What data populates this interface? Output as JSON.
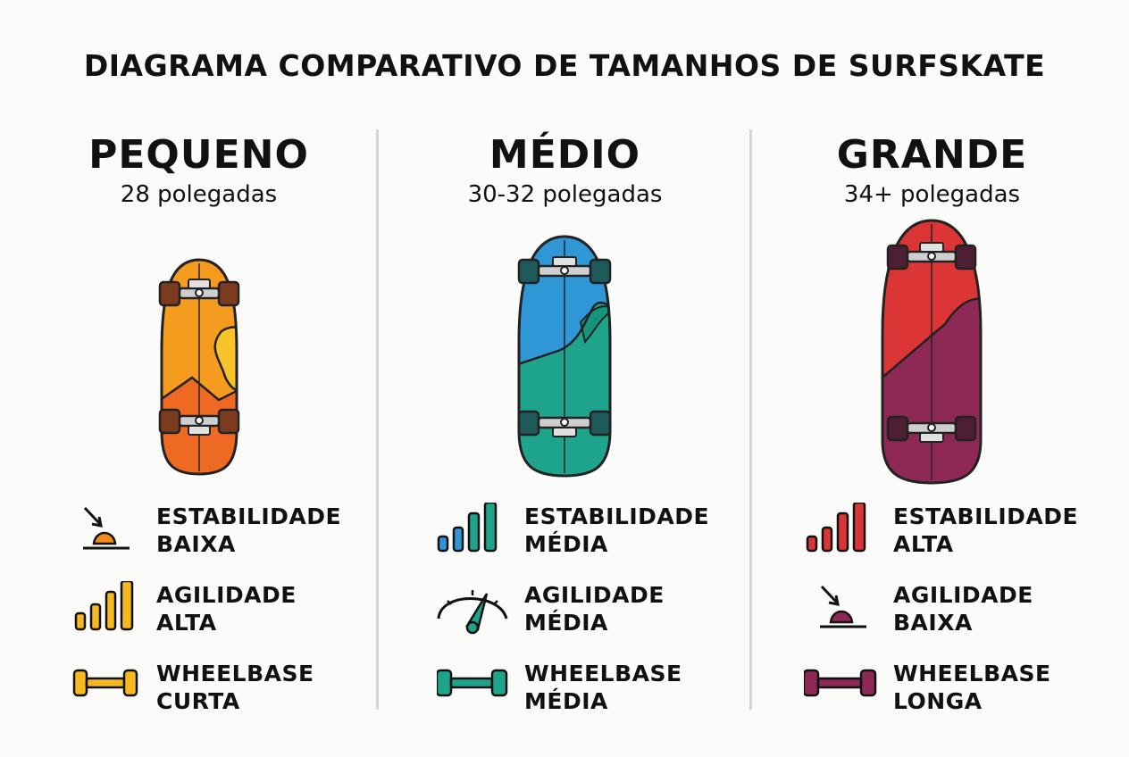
{
  "title": "DIAGRAMA COMPARATIVO DE TAMANHOS DE SURFSKATE",
  "columns": [
    {
      "name": "PEQUENO",
      "size": "28 polegadas",
      "colors": {
        "main": "#f08a1c",
        "accent": "#f5b81f",
        "dark": "#e8622a",
        "hw": "#7a3b1e"
      },
      "attributes": [
        {
          "label": "ESTABILIDADE",
          "value": "BAIXA",
          "icon": "low-dome-icon"
        },
        {
          "label": "AGILIDADE",
          "value": "ALTA",
          "icon": "bars-icon"
        },
        {
          "label": "WHEELBASE",
          "value": "CURTA",
          "icon": "axle-icon"
        }
      ]
    },
    {
      "name": "MÉDIO",
      "size": "30-32 polegadas",
      "colors": {
        "main": "#2f97d5",
        "accent": "#1fa48c",
        "dark": "#13917b",
        "hw": "#1f5a5b"
      },
      "attributes": [
        {
          "label": "ESTABILIDADE",
          "value": "MÉDIA",
          "icon": "bars-icon"
        },
        {
          "label": "AGILIDADE",
          "value": "MÉDIA",
          "icon": "gauge-icon"
        },
        {
          "label": "WHEELBASE",
          "value": "MÉDIA",
          "icon": "axle-icon"
        }
      ]
    },
    {
      "name": "GRANDE",
      "size": "34+ polegadas",
      "colors": {
        "main": "#dc3535",
        "accent": "#8e2955",
        "dark": "#7a2448",
        "hw": "#4e1f33"
      },
      "attributes": [
        {
          "label": "ESTABILIDADE",
          "value": "ALTA",
          "icon": "bars-icon"
        },
        {
          "label": "AGILIDADE",
          "value": "BAIXA",
          "icon": "low-dome-icon"
        },
        {
          "label": "WHEELBASE",
          "value": "LONGA",
          "icon": "axle-icon"
        }
      ]
    }
  ]
}
